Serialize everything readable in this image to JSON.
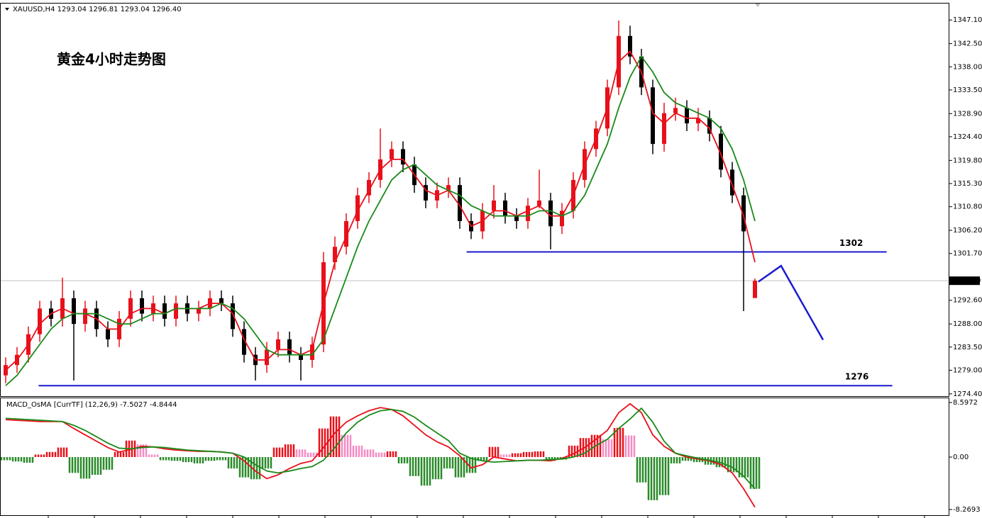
{
  "chart_data": [
    {
      "type": "candlestick",
      "header": "XAUUSD,H4  1293.04 1296.81 1293.04 1296.40",
      "title": "黄金4小时走势图",
      "title_color": "#1a1ac8",
      "up_color": "#e8101a",
      "down_color": "#000000",
      "open": [
        1278,
        1280,
        1282,
        1286,
        1291,
        1289,
        1293,
        1288,
        1291,
        1287,
        1285,
        1289,
        1293,
        1290,
        1292,
        1289,
        1292,
        1290,
        1291,
        1293,
        1292,
        1287,
        1282,
        1280,
        1283,
        1285,
        1282,
        1281,
        1284,
        1300,
        1303,
        1308,
        1313,
        1316,
        1320,
        1322,
        1319,
        1315,
        1312,
        1314,
        1315,
        1308,
        1306,
        1310,
        1312,
        1309,
        1308,
        1311,
        1312,
        1307,
        1310,
        1316,
        1322,
        1326,
        1334,
        1344,
        1340,
        1334,
        1323,
        1329,
        1330,
        1327,
        1328,
        1325,
        1318,
        1313,
        1293.04
      ],
      "high": [
        1281.5,
        1283.5,
        1287.5,
        1292.5,
        1292.5,
        1297,
        1294.5,
        1292.5,
        1292.5,
        1288.5,
        1290.5,
        1294.5,
        1294.5,
        1293.5,
        1293.5,
        1293.5,
        1293.5,
        1292.5,
        1294.5,
        1294.5,
        1293.5,
        1288.5,
        1283.5,
        1284.5,
        1286.5,
        1286.5,
        1283.5,
        1285.5,
        1302,
        1305,
        1309.5,
        1314.5,
        1317.5,
        1326,
        1323.5,
        1323.5,
        1320.5,
        1316.5,
        1315.5,
        1316.5,
        1316.5,
        1309.5,
        1311.5,
        1315,
        1313.5,
        1310.5,
        1312.5,
        1318,
        1313.5,
        1311.5,
        1317.5,
        1323.5,
        1327.5,
        1335.5,
        1347,
        1346,
        1341.5,
        1335.5,
        1331,
        1332,
        1331.5,
        1330,
        1329.5,
        1326.5,
        1319.5,
        1314.5,
        1296.81
      ],
      "low": [
        1276.5,
        1278.5,
        1280.5,
        1284.5,
        1287.5,
        1287.5,
        1277,
        1286.5,
        1285.5,
        1283.5,
        1283.5,
        1287.5,
        1288.5,
        1288.5,
        1287.5,
        1287.5,
        1288.5,
        1288.5,
        1289.5,
        1290.5,
        1285.5,
        1280.5,
        1277,
        1278.5,
        1281.5,
        1280.5,
        1277,
        1279.5,
        1282.5,
        1298.5,
        1301.5,
        1306.5,
        1311.5,
        1314.5,
        1318.5,
        1317.5,
        1313.5,
        1310.5,
        1310.5,
        1312.5,
        1306.5,
        1304.5,
        1304.5,
        1308.5,
        1307.5,
        1306.5,
        1306.5,
        1310.5,
        1302.5,
        1305.5,
        1308.5,
        1314.5,
        1320.5,
        1324.5,
        1332.5,
        1338.5,
        1332.5,
        1321,
        1321.5,
        1327.5,
        1325.5,
        1325.5,
        1323.5,
        1316.5,
        1311.5,
        1290.5,
        1293.04
      ],
      "close": [
        1280,
        1282,
        1286,
        1291,
        1289,
        1293,
        1288,
        1291,
        1287,
        1285,
        1289,
        1293,
        1290,
        1292,
        1289,
        1292,
        1290,
        1291,
        1293,
        1292,
        1287,
        1282,
        1280,
        1283,
        1285,
        1282,
        1281,
        1284,
        1300,
        1303,
        1308,
        1313,
        1316,
        1320,
        1322,
        1319,
        1315,
        1312,
        1314,
        1315,
        1308,
        1306,
        1310,
        1312,
        1309,
        1308,
        1311,
        1312,
        1307,
        1310,
        1316,
        1322,
        1326,
        1334,
        1344,
        1340,
        1334,
        1323,
        1329,
        1330,
        1327,
        1328,
        1325,
        1318,
        1313,
        1306,
        1296.4
      ],
      "overlays": [
        {
          "color": "#e8101a",
          "values": [
            1279,
            1281,
            1284,
            1288,
            1290,
            1291,
            1290,
            1290,
            1289,
            1287,
            1287,
            1290,
            1291,
            1291,
            1290,
            1291,
            1291,
            1291,
            1292,
            1292,
            1290,
            1285,
            1281,
            1281,
            1283,
            1283,
            1282,
            1283,
            1292,
            1300,
            1305,
            1310,
            1314,
            1318,
            1320,
            1320,
            1317,
            1314,
            1313,
            1314,
            1311,
            1307,
            1308,
            1310,
            1310,
            1309,
            1310,
            1311,
            1309,
            1309,
            1313,
            1319,
            1324,
            1330,
            1339,
            1341,
            1337,
            1329,
            1327,
            1329,
            1328,
            1328,
            1326,
            1321,
            1315,
            1309,
            1300
          ]
        },
        {
          "color": "#1a8a1a",
          "values": [
            1276,
            1278,
            1281,
            1284,
            1287,
            1289,
            1290,
            1290,
            1290,
            1289,
            1288,
            1288,
            1289,
            1290,
            1290,
            1291,
            1291,
            1291,
            1291,
            1292,
            1291,
            1289,
            1286,
            1283,
            1282,
            1282,
            1282,
            1282,
            1285,
            1291,
            1297,
            1303,
            1308,
            1312,
            1316,
            1318,
            1319,
            1317,
            1315,
            1314,
            1313,
            1311,
            1310,
            1309,
            1309,
            1309,
            1309,
            1310,
            1310,
            1309,
            1310,
            1313,
            1318,
            1323,
            1330,
            1336,
            1340,
            1337,
            1333,
            1331,
            1330,
            1329,
            1328,
            1326,
            1322,
            1316,
            1308
          ]
        }
      ],
      "levels": [
        {
          "value": 1302,
          "from": 40.6,
          "to": 77.6
        },
        {
          "value": 1276,
          "from": 2.9,
          "to": 78.1
        }
      ],
      "level_color": "#1a1ad0",
      "forecast": {
        "x": [
          66.3,
          68.3,
          72
        ],
        "y": [
          1296.2,
          1299.3,
          1284.9
        ],
        "color": "#1a1ad0"
      },
      "current_price": {
        "value": 1296.4,
        "label": "1296.40"
      },
      "ylim": [
        1274.1,
        1350.3
      ],
      "yticks": [
        {
          "value": 1347.1,
          "label": "1347.10"
        },
        {
          "value": 1342.5,
          "label": "1342.50"
        },
        {
          "value": 1338,
          "label": "1338.00"
        },
        {
          "value": 1333.5,
          "label": "1333.50"
        },
        {
          "value": 1328.9,
          "label": "1328.90"
        },
        {
          "value": 1324.4,
          "label": "1324.40"
        },
        {
          "value": 1319.8,
          "label": "1319.80"
        },
        {
          "value": 1315.3,
          "label": "1315.30"
        },
        {
          "value": 1310.8,
          "label": "1310.80"
        },
        {
          "value": 1306.2,
          "label": "1306.20"
        },
        {
          "value": 1301.7,
          "label": "1301.70"
        },
        {
          "value": 1292.6,
          "label": "1292.60"
        },
        {
          "value": 1288,
          "label": "1288.00"
        },
        {
          "value": 1283.5,
          "label": "1283.50"
        },
        {
          "value": 1279,
          "label": "1279.00"
        },
        {
          "value": 1274.4,
          "label": "1274.40"
        }
      ]
    },
    {
      "type": "macd",
      "title": "MACD_OsMA [CurrTF] (12,26,9) -7.5027 -4.8444",
      "histogram": {
        "values": [
          -0.5,
          -0.7,
          -0.9,
          0.4,
          0.8,
          1.5,
          -2.5,
          -3.4,
          -2.8,
          -2.0,
          0.8,
          2.6,
          2.0,
          0.4,
          -0.5,
          -0.6,
          -0.8,
          -1.0,
          -0.6,
          -0.5,
          -1.8,
          -3.2,
          -3.5,
          -1.8,
          1.5,
          2.0,
          1.2,
          0.7,
          4.5,
          6.4,
          3.5,
          1.8,
          1.2,
          0.7,
          0.9,
          -1.0,
          -3.0,
          -4.5,
          -3.5,
          -1.8,
          -3.2,
          -2.5,
          -0.6,
          1.6,
          0.4,
          0.6,
          0.8,
          0.9,
          -0.6,
          -0.4,
          1.8,
          3.0,
          3.5,
          2.8,
          4.6,
          3.4,
          -4.0,
          -6.8,
          -6.0,
          -1.0,
          -0.6,
          -0.8,
          -1.2,
          -1.6,
          -2.4,
          -3.2,
          -5.0
        ],
        "rising_color": "#e8101a",
        "falling_color": "#f48cc4",
        "negative_color": "#2a8a2a"
      },
      "lines": [
        {
          "color": "#e8101a",
          "values": [
            5.9,
            5.8,
            5.7,
            5.6,
            5.6,
            5.6,
            4.5,
            3.5,
            2.5,
            1.5,
            0.8,
            1.2,
            1.7,
            1.6,
            1.3,
            1.1,
            1.0,
            0.9,
            0.9,
            0.8,
            0.6,
            -0.6,
            -2.2,
            -3.4,
            -2.8,
            -1.8,
            -1.0,
            -0.6,
            1.5,
            3.8,
            5.5,
            6.5,
            7.3,
            7.8,
            7.5,
            6.5,
            5.0,
            3.5,
            2.4,
            1.6,
            0.2,
            -1.7,
            -1.2,
            0.0,
            -0.3,
            -0.6,
            -0.5,
            -0.5,
            -0.6,
            -0.2,
            0.5,
            1.5,
            2.8,
            4.2,
            7.0,
            8.4,
            7.0,
            3.5,
            1.7,
            0.6,
            0.0,
            -0.3,
            -0.6,
            -1.2,
            -2.5,
            -5.0,
            -7.9
          ]
        },
        {
          "color": "#1a8a1a",
          "values": [
            6.1,
            6.0,
            5.9,
            5.8,
            5.7,
            5.6,
            5.0,
            4.2,
            3.2,
            2.2,
            1.4,
            1.3,
            1.5,
            1.6,
            1.5,
            1.3,
            1.1,
            1.0,
            0.9,
            0.8,
            0.6,
            0.0,
            -1.2,
            -2.2,
            -2.5,
            -2.2,
            -1.8,
            -1.5,
            -0.5,
            1.5,
            3.8,
            5.5,
            6.6,
            7.3,
            7.5,
            7.2,
            6.3,
            5.0,
            3.8,
            2.6,
            0.6,
            -0.2,
            -0.6,
            -0.8,
            -0.7,
            -0.6,
            -0.5,
            -0.5,
            -0.4,
            -0.3,
            0.0,
            0.6,
            1.8,
            2.8,
            4.5,
            6.0,
            7.7,
            5.5,
            2.5,
            0.6,
            0.2,
            -0.2,
            -0.5,
            -0.9,
            -1.6,
            -3.0,
            -5.0
          ]
        }
      ],
      "ylim": [
        -9.16,
        9.27
      ],
      "yticks": [
        8.5972,
        {
          "value": 0,
          "label": "0.00"
        },
        -8.2693
      ]
    }
  ]
}
